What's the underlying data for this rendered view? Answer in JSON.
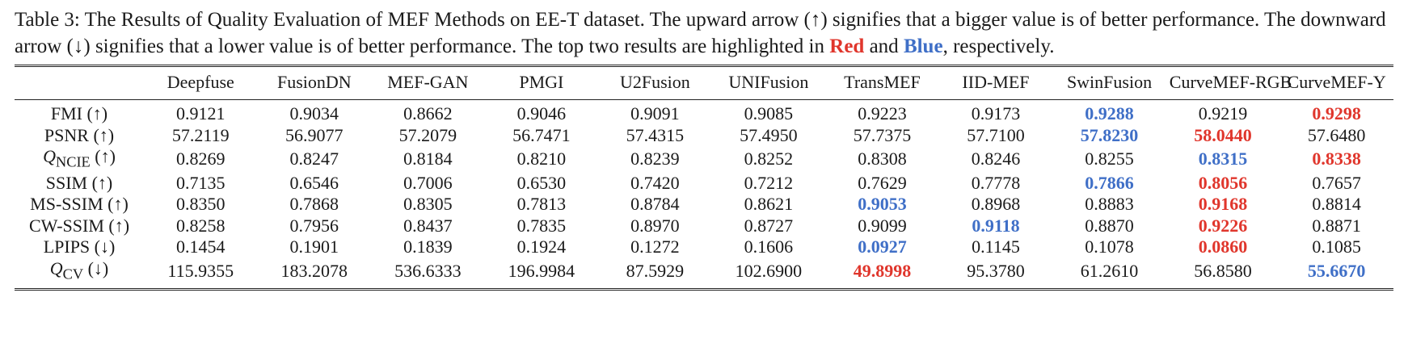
{
  "caption": {
    "main": "Table 3: The Results of Quality Evaluation of MEF Methods on EE-T dataset. The upward arrow (↑) signifies that a bigger value is of better performance. The downward arrow (↓) signifies that a lower value is of better performance. The top two results are highlighted in",
    "red_word": "Red",
    "and_word": "and",
    "blue_word": "Blue",
    "tail": ", respectively."
  },
  "colors": {
    "rank_1": "#e0362c",
    "rank_2": "#3f6fc7"
  },
  "table": {
    "columns": [
      "Deepfuse",
      "FusionDN",
      "MEF-GAN",
      "PMGI",
      "U2Fusion",
      "UNIFusion",
      "TransMEF",
      "IID-MEF",
      "SwinFusion",
      "CurveMEF-RGB",
      "CurveMEF-Y"
    ],
    "rows": [
      {
        "metric": "FMI (↑)",
        "metric_base": "",
        "metric_sub": "",
        "metric_arrow": "",
        "values": [
          "0.9121",
          "0.9034",
          "0.8662",
          "0.9046",
          "0.9091",
          "0.9085",
          "0.9223",
          "0.9173",
          "0.9288",
          "0.9219",
          "0.9298"
        ],
        "rank_1_col": 10,
        "rank_2_col": 8
      },
      {
        "metric": "PSNR (↑)",
        "metric_base": "",
        "metric_sub": "",
        "metric_arrow": "",
        "values": [
          "57.2119",
          "56.9077",
          "57.2079",
          "56.7471",
          "57.4315",
          "57.4950",
          "57.7375",
          "57.7100",
          "57.8230",
          "58.0440",
          "57.6480"
        ],
        "rank_1_col": 9,
        "rank_2_col": 8
      },
      {
        "metric": "",
        "metric_base": "Q",
        "metric_sub": "NCIE",
        "metric_arrow": " (↑)",
        "values": [
          "0.8269",
          "0.8247",
          "0.8184",
          "0.8210",
          "0.8239",
          "0.8252",
          "0.8308",
          "0.8246",
          "0.8255",
          "0.8315",
          "0.8338"
        ],
        "rank_1_col": 10,
        "rank_2_col": 9
      },
      {
        "metric": "SSIM (↑)",
        "metric_base": "",
        "metric_sub": "",
        "metric_arrow": "",
        "values": [
          "0.7135",
          "0.6546",
          "0.7006",
          "0.6530",
          "0.7420",
          "0.7212",
          "0.7629",
          "0.7778",
          "0.7866",
          "0.8056",
          "0.7657"
        ],
        "rank_1_col": 9,
        "rank_2_col": 8
      },
      {
        "metric": "MS-SSIM (↑)",
        "metric_base": "",
        "metric_sub": "",
        "metric_arrow": "",
        "values": [
          "0.8350",
          "0.7868",
          "0.8305",
          "0.7813",
          "0.8784",
          "0.8621",
          "0.9053",
          "0.8968",
          "0.8883",
          "0.9168",
          "0.8814"
        ],
        "rank_1_col": 9,
        "rank_2_col": 6
      },
      {
        "metric": "CW-SSIM (↑)",
        "metric_base": "",
        "metric_sub": "",
        "metric_arrow": "",
        "values": [
          "0.8258",
          "0.7956",
          "0.8437",
          "0.7835",
          "0.8970",
          "0.8727",
          "0.9099",
          "0.9118",
          "0.8870",
          "0.9226",
          "0.8871"
        ],
        "rank_1_col": 9,
        "rank_2_col": 7
      },
      {
        "metric": "LPIPS (↓)",
        "metric_base": "",
        "metric_sub": "",
        "metric_arrow": "",
        "values": [
          "0.1454",
          "0.1901",
          "0.1839",
          "0.1924",
          "0.1272",
          "0.1606",
          "0.0927",
          "0.1145",
          "0.1078",
          "0.0860",
          "0.1085"
        ],
        "rank_1_col": 9,
        "rank_2_col": 6
      },
      {
        "metric": "",
        "metric_base": "Q",
        "metric_sub": "CV",
        "metric_arrow": " (↓)",
        "values": [
          "115.9355",
          "183.2078",
          "536.6333",
          "196.9984",
          "87.5929",
          "102.6900",
          "49.8998",
          "95.3780",
          "61.2610",
          "56.8580",
          "55.6670"
        ],
        "rank_1_col": 6,
        "rank_2_col": 10
      }
    ]
  }
}
